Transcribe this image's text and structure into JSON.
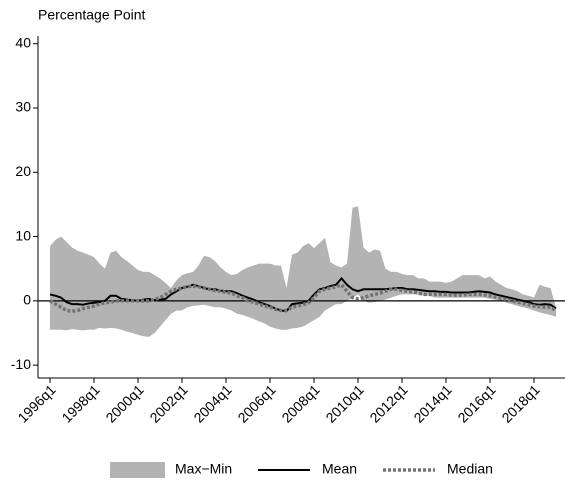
{
  "chart_data": {
    "type": "band-line",
    "y_label": "Percentage Point",
    "categories": [
      "1996q1",
      null,
      null,
      null,
      null,
      null,
      null,
      null,
      "1998q1",
      null,
      null,
      null,
      null,
      null,
      null,
      null,
      "2000q1",
      null,
      null,
      null,
      null,
      null,
      null,
      null,
      "2002q1",
      null,
      null,
      null,
      null,
      null,
      null,
      null,
      "2004q1",
      null,
      null,
      null,
      null,
      null,
      null,
      null,
      "2006q1",
      null,
      null,
      null,
      null,
      null,
      null,
      null,
      "2008q1",
      null,
      null,
      null,
      null,
      null,
      null,
      null,
      "2010q1",
      null,
      null,
      null,
      null,
      null,
      null,
      null,
      "2012q1",
      null,
      null,
      null,
      null,
      null,
      null,
      null,
      "2014q1",
      null,
      null,
      null,
      null,
      null,
      null,
      null,
      "2016q1",
      null,
      null,
      null,
      null,
      null,
      null,
      null,
      "2018q1",
      null,
      null,
      null,
      null
    ],
    "ylim": [
      -12,
      41.2
    ],
    "yticks": [
      -10,
      0,
      10,
      20,
      30,
      40
    ],
    "hline": 0,
    "band": {
      "name": "Max−Min",
      "color": "#b3b3b3",
      "high": [
        8.5,
        9.5,
        10,
        9.2,
        8.3,
        7.8,
        7.5,
        7.2,
        6.8,
        5.8,
        5,
        7.5,
        7.8,
        6.8,
        6.2,
        5.5,
        4.8,
        4.5,
        4.5,
        4,
        3.5,
        2.8,
        2,
        3.2,
        4,
        4.3,
        4.5,
        5.5,
        7,
        6.8,
        6.2,
        5.2,
        4.5,
        4,
        4.2,
        4.8,
        5.2,
        5.5,
        5.8,
        5.8,
        5.8,
        5.5,
        5.5,
        2,
        7.2,
        7.5,
        8.5,
        9,
        8.2,
        9,
        9.8,
        6,
        5.5,
        5.2,
        5.8,
        14.5,
        14.7,
        8.3,
        7.5,
        8,
        7.8,
        5,
        4.5,
        4.5,
        4.2,
        4,
        4,
        3.5,
        3.5,
        3,
        3,
        3,
        2.8,
        3,
        3.5,
        4,
        4,
        4,
        4,
        3.5,
        3.8,
        3,
        2.5,
        2,
        1.8,
        1.5,
        1,
        0.8,
        0.5,
        2.5,
        2.2,
        2,
        -1
      ],
      "low": [
        -4.5,
        -4.5,
        -4.5,
        -4.6,
        -4.4,
        -4.5,
        -4.6,
        -4.5,
        -4.5,
        -4.2,
        -4.3,
        -4.2,
        -4.3,
        -4.5,
        -4.8,
        -5,
        -5.3,
        -5.5,
        -5.6,
        -5,
        -4,
        -3,
        -2,
        -1.5,
        -1.5,
        -1,
        -0.8,
        -0.7,
        -0.6,
        -0.8,
        -1,
        -1,
        -1.2,
        -1.5,
        -2,
        -2.2,
        -2.5,
        -2.8,
        -3.2,
        -3.5,
        -4,
        -4.3,
        -4.5,
        -4.5,
        -4.3,
        -4.2,
        -4,
        -3.5,
        -3,
        -2.5,
        -1.5,
        -1,
        -0.5,
        -0.5,
        0,
        0.5,
        1,
        0,
        -0.3,
        -0.2,
        0,
        0.2,
        0.5,
        0.8,
        1,
        1,
        1,
        1,
        0.8,
        0.8,
        0.5,
        0.5,
        0.5,
        0.5,
        0.5,
        0.5,
        0.5,
        0.5,
        0.5,
        0.5,
        0.3,
        0.2,
        0,
        -0.3,
        -0.5,
        -0.8,
        -1,
        -1.2,
        -1.5,
        -1.8,
        -2,
        -2.2,
        -2.5
      ]
    },
    "series": [
      {
        "name": "Mean",
        "color": "#000000",
        "dash": "solid",
        "values": [
          1,
          0.8,
          0.5,
          -0.2,
          -0.5,
          -0.5,
          -0.6,
          -0.4,
          -0.3,
          -0.2,
          0,
          0.8,
          0.8,
          0.3,
          0.2,
          0.1,
          0,
          0.2,
          0.3,
          0.1,
          0.2,
          0.3,
          1,
          1.5,
          2,
          2.2,
          2.5,
          2.3,
          2,
          1.8,
          1.8,
          1.6,
          1.5,
          1.5,
          1.2,
          0.8,
          0.5,
          0.2,
          -0.2,
          -0.5,
          -0.8,
          -1.2,
          -1.5,
          -1.6,
          -0.5,
          -0.4,
          -0.3,
          0,
          1,
          1.8,
          2,
          2.3,
          2.5,
          3.5,
          2.5,
          1.8,
          1.5,
          1.8,
          1.8,
          1.8,
          1.8,
          1.8,
          1.9,
          2,
          2,
          1.8,
          1.8,
          1.7,
          1.6,
          1.5,
          1.5,
          1.4,
          1.4,
          1.3,
          1.3,
          1.3,
          1.3,
          1.4,
          1.5,
          1.4,
          1.3,
          1,
          0.8,
          0.6,
          0.4,
          0.2,
          0,
          -0.2,
          -0.5,
          -0.6,
          -0.5,
          -0.6,
          -1.2
        ]
      },
      {
        "name": "Median",
        "color": "#737373",
        "dash": "dotted",
        "values": [
          0,
          -0.5,
          -1,
          -1.5,
          -1.6,
          -1.5,
          -1.2,
          -1,
          -0.8,
          -0.5,
          -0.3,
          -0.2,
          0,
          0,
          0,
          0,
          0,
          0,
          0,
          0.2,
          0.5,
          1,
          1.5,
          1.8,
          2,
          2.2,
          2.3,
          2.2,
          2,
          1.8,
          1.6,
          1.5,
          1.3,
          1.2,
          0.8,
          0.5,
          0,
          -0.2,
          -0.5,
          -0.8,
          -1,
          -1.3,
          -1.5,
          -1.5,
          -1,
          -0.8,
          -0.6,
          -0.3,
          0.5,
          1.5,
          1.8,
          2,
          2.2,
          2.5,
          1.5,
          0.5,
          0.3,
          0.5,
          0.8,
          1,
          1.2,
          1.5,
          1.8,
          1.8,
          1.6,
          1.5,
          1.4,
          1.2,
          1,
          1,
          1,
          1,
          1,
          0.9,
          0.9,
          0.9,
          1,
          1,
          1,
          0.9,
          0.8,
          0.6,
          0.4,
          0.2,
          0,
          -0.2,
          -0.4,
          -0.6,
          -0.8,
          -0.9,
          -1,
          -1,
          -1.5
        ]
      }
    ]
  }
}
